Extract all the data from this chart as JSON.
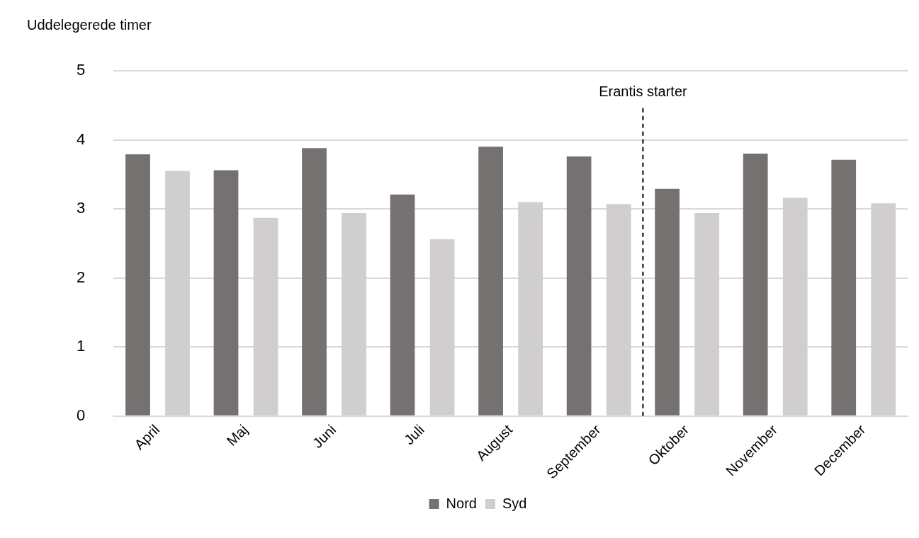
{
  "chart_data": {
    "type": "bar",
    "ylabel": "Uddelegerede timer",
    "categories": [
      "April",
      "Maj",
      "Juni",
      "Juli",
      "August",
      "September",
      "Oktober",
      "November",
      "December"
    ],
    "series": [
      {
        "name": "Nord",
        "color": "#767171",
        "values": [
          3.79,
          3.56,
          3.88,
          3.21,
          3.9,
          3.76,
          3.29,
          3.8,
          3.71
        ]
      },
      {
        "name": "Syd",
        "color": "#d0cece",
        "values": [
          3.55,
          2.87,
          2.94,
          2.56,
          3.1,
          3.07,
          2.94,
          3.16,
          3.08
        ]
      }
    ],
    "ylim": [
      0,
      5
    ],
    "yticks": [
      0,
      1,
      2,
      3,
      4,
      5
    ],
    "grid": "y",
    "legend": "bottom",
    "ref_lines": [
      {
        "axis": "x",
        "value": "Oktober",
        "label": "Erantis starter",
        "line_style": "dashed",
        "color": "#000000"
      }
    ]
  }
}
